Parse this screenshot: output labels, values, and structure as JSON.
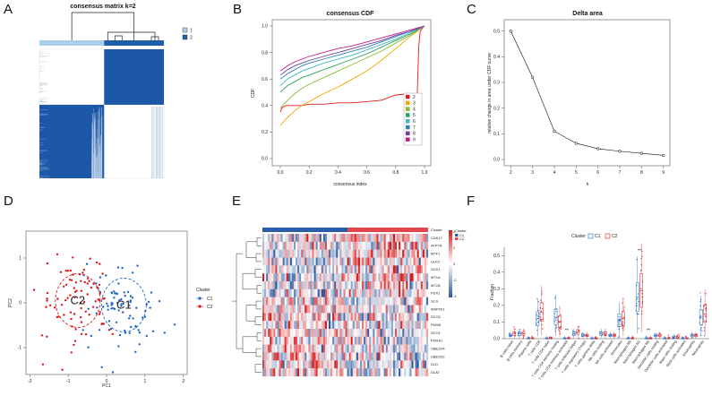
{
  "panel_letters": {
    "a": "A",
    "b": "B",
    "c": "C",
    "d": "D",
    "e": "E",
    "f": "F"
  },
  "chart_data": [
    {
      "panel": "A",
      "type": "heatmap",
      "title": "consensus matrix k=2",
      "legend": [
        "1",
        "2"
      ],
      "colors": {
        "cluster1": "#a9cfe8",
        "cluster2": "#1f5fa8",
        "fill": "#1d57a8"
      },
      "cluster_split": 0.52
    },
    {
      "panel": "B",
      "type": "line",
      "title": "consensus CDF",
      "xlabel": "consensus index",
      "ylabel": "CDF",
      "xlim": [
        0,
        1
      ],
      "ylim": [
        0,
        1
      ],
      "xticks": [
        "0.0",
        "0.2",
        "0.4",
        "0.6",
        "0.8",
        "1.0"
      ],
      "yticks": [
        "0.0",
        "0.2",
        "0.4",
        "0.6",
        "0.8",
        "1.0"
      ],
      "series": [
        {
          "name": "2",
          "color": "#e41a1c",
          "x": [
            0.0,
            0.01,
            0.02,
            0.04,
            0.06,
            0.1,
            0.15,
            0.2,
            0.3,
            0.4,
            0.5,
            0.6,
            0.7,
            0.8,
            0.9,
            0.95,
            0.96,
            0.97,
            0.99,
            1.0
          ],
          "y": [
            0.35,
            0.38,
            0.39,
            0.4,
            0.4,
            0.4,
            0.4,
            0.41,
            0.41,
            0.42,
            0.42,
            0.43,
            0.44,
            0.48,
            0.49,
            0.49,
            0.85,
            0.96,
            0.99,
            1.0
          ]
        },
        {
          "name": "3",
          "color": "#f0a500",
          "x": [
            0.0,
            0.05,
            0.1,
            0.15,
            0.2,
            0.3,
            0.4,
            0.5,
            0.6,
            0.7,
            0.8,
            0.9,
            1.0
          ],
          "y": [
            0.25,
            0.31,
            0.36,
            0.4,
            0.43,
            0.49,
            0.54,
            0.6,
            0.66,
            0.74,
            0.83,
            0.92,
            1.0
          ]
        },
        {
          "name": "4",
          "color": "#7fbf2a",
          "x": [
            0.0,
            0.05,
            0.1,
            0.15,
            0.2,
            0.3,
            0.4,
            0.5,
            0.6,
            0.7,
            0.8,
            0.9,
            1.0
          ],
          "y": [
            0.38,
            0.44,
            0.49,
            0.53,
            0.56,
            0.61,
            0.66,
            0.71,
            0.76,
            0.81,
            0.87,
            0.93,
            1.0
          ]
        },
        {
          "name": "5",
          "color": "#2ca25f",
          "x": [
            0.0,
            0.05,
            0.1,
            0.15,
            0.2,
            0.3,
            0.4,
            0.5,
            0.6,
            0.7,
            0.8,
            0.9,
            1.0
          ],
          "y": [
            0.5,
            0.55,
            0.58,
            0.61,
            0.63,
            0.67,
            0.71,
            0.75,
            0.79,
            0.84,
            0.89,
            0.94,
            1.0
          ]
        },
        {
          "name": "6",
          "color": "#41b6c4",
          "x": [
            0.0,
            0.05,
            0.1,
            0.15,
            0.2,
            0.3,
            0.4,
            0.5,
            0.6,
            0.7,
            0.8,
            0.9,
            1.0
          ],
          "y": [
            0.55,
            0.6,
            0.63,
            0.66,
            0.68,
            0.72,
            0.75,
            0.78,
            0.82,
            0.86,
            0.9,
            0.95,
            1.0
          ]
        },
        {
          "name": "7",
          "color": "#2c7fb8",
          "x": [
            0.0,
            0.05,
            0.1,
            0.15,
            0.2,
            0.3,
            0.4,
            0.5,
            0.6,
            0.7,
            0.8,
            0.9,
            1.0
          ],
          "y": [
            0.6,
            0.64,
            0.67,
            0.7,
            0.72,
            0.75,
            0.78,
            0.81,
            0.84,
            0.88,
            0.92,
            0.96,
            1.0
          ]
        },
        {
          "name": "8",
          "color": "#6a3d9a",
          "x": [
            0.0,
            0.05,
            0.1,
            0.15,
            0.2,
            0.3,
            0.4,
            0.5,
            0.6,
            0.7,
            0.8,
            0.9,
            1.0
          ],
          "y": [
            0.63,
            0.67,
            0.7,
            0.72,
            0.74,
            0.77,
            0.8,
            0.83,
            0.86,
            0.89,
            0.93,
            0.96,
            1.0
          ]
        },
        {
          "name": "9",
          "color": "#c51b8a",
          "x": [
            0.0,
            0.05,
            0.1,
            0.15,
            0.2,
            0.3,
            0.4,
            0.5,
            0.6,
            0.7,
            0.8,
            0.9,
            1.0
          ],
          "y": [
            0.66,
            0.7,
            0.73,
            0.75,
            0.77,
            0.8,
            0.83,
            0.85,
            0.88,
            0.91,
            0.94,
            0.97,
            1.0
          ]
        }
      ]
    },
    {
      "panel": "C",
      "type": "line",
      "title": "Delta area",
      "xlabel": "k",
      "ylabel": "relative change in area under CDF curve",
      "x": [
        2,
        3,
        4,
        5,
        6,
        7,
        8,
        9
      ],
      "y": [
        0.5,
        0.32,
        0.11,
        0.063,
        0.042,
        0.032,
        0.024,
        0.016
      ],
      "xlim": [
        1.7,
        9.3
      ],
      "ylim": [
        0,
        0.52
      ],
      "xticks": [
        "2",
        "3",
        "4",
        "5",
        "6",
        "7",
        "8",
        "9"
      ],
      "yticks": [
        "0.0",
        "0.1",
        "0.2",
        "0.3",
        "0.4",
        "0.5"
      ]
    },
    {
      "panel": "D",
      "type": "scatter",
      "xlabel": "PC1",
      "ylabel": "PC2",
      "xlim": [
        -2.1,
        2.1
      ],
      "ylim": [
        -1.6,
        1.6
      ],
      "xticks": [
        "-2",
        "-1",
        "0",
        "1",
        "2"
      ],
      "yticks": [
        "-1",
        "0",
        "1"
      ],
      "legend_title": "Cluster",
      "series": [
        {
          "name": "C1",
          "label": "C1",
          "color": "#2166c0",
          "center": [
            0.45,
            -0.05
          ]
        },
        {
          "name": "C2",
          "label": "C2",
          "color": "#d7191c",
          "center": [
            -0.75,
            0.05
          ]
        }
      ]
    },
    {
      "panel": "E",
      "type": "heatmap",
      "legend_title": "Cluster",
      "legend": [
        "C1",
        "C2"
      ],
      "scale_labels": [
        "4",
        "2",
        "0",
        "-2",
        "-4"
      ],
      "genes": [
        "CDK17",
        "ATP7A",
        "MTF1",
        "ULK2",
        "SCD1",
        "MT1A",
        "MT2A",
        "PDX1",
        "GLS",
        "MAP2K1",
        "SCO2",
        "PDHB",
        "SCO1",
        "PDHA1",
        "UBE2D4",
        "UBE2D2",
        "DLD",
        "DLAT"
      ]
    },
    {
      "panel": "F",
      "type": "bar",
      "ylabel": "Fraction",
      "legend_title": "Cluster",
      "legend": [
        "C1",
        "C2"
      ],
      "ylim": [
        0,
        0.55
      ],
      "yticks": [
        "0.0",
        "0.1",
        "0.2",
        "0.3",
        "0.4",
        "0.5"
      ],
      "sig_mark": "**",
      "categories": [
        "B cells naive",
        "B cells memory",
        "Plasma cells",
        "T cells CD8",
        "T cells CD4 naive",
        "T cells CD4 memory resting",
        "T cells CD4 memory activated",
        "T cells follicular helper",
        "T cells regulatory (Tregs)",
        "T cells gamma delta",
        "NK cells resting",
        "NK cells activated",
        "Monocytes",
        "Macrophages M0",
        "Macrophages M1",
        "Macrophages M2",
        "Dendritic cells resting",
        "Dendritic cells activated",
        "Mast cells resting",
        "Mast cells activated",
        "Eosinophils",
        "Neutrophils"
      ],
      "series": [
        {
          "name": "C1",
          "color": "#2166c0",
          "values": [
            0.02,
            0.03,
            0.0,
            0.12,
            0.0,
            0.13,
            0.0,
            0.03,
            0.02,
            0.0,
            0.03,
            0.02,
            0.11,
            0.0,
            0.25,
            0.0,
            0.02,
            0.0,
            0.01,
            0.0,
            0.02,
            0.13
          ]
        },
        {
          "name": "C2",
          "color": "#d7191c",
          "values": [
            0.03,
            0.03,
            0.0,
            0.16,
            0.0,
            0.1,
            0.0,
            0.04,
            0.02,
            0.0,
            0.03,
            0.02,
            0.12,
            0.0,
            0.29,
            0.0,
            0.02,
            0.0,
            0.01,
            0.0,
            0.02,
            0.15
          ]
        }
      ],
      "significant": [
        "T cells CD4 memory activated",
        "Macrophages M1",
        "Macrophages M2"
      ]
    }
  ]
}
